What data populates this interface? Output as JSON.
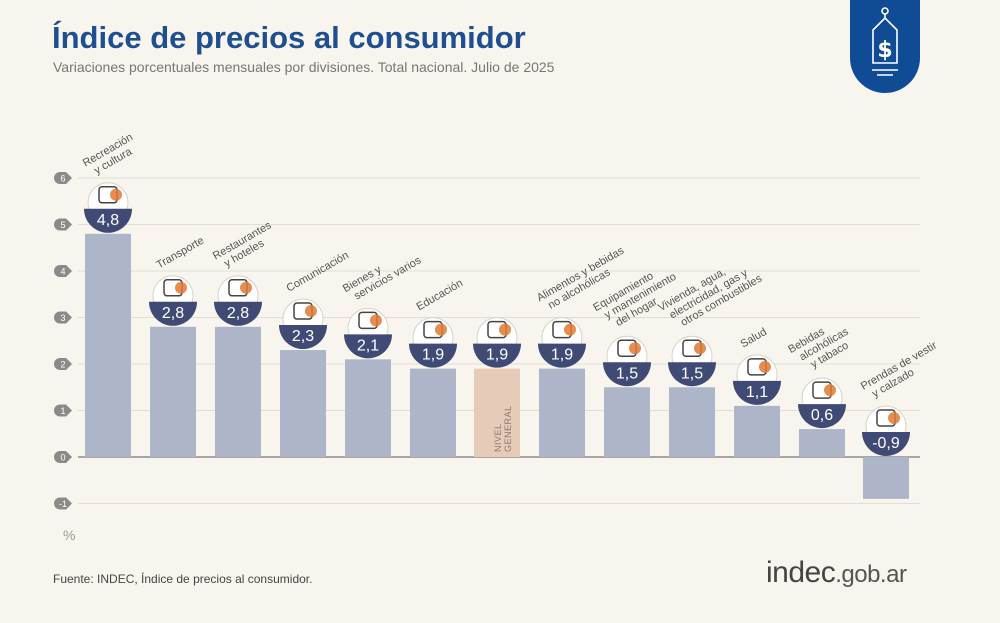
{
  "header": {
    "title": "Índice de precios al consumidor",
    "subtitle": "Variaciones porcentuales mensuales por divisiones. Total nacional. Julio de 2025"
  },
  "footer": {
    "source": "Fuente: INDEC, Índice de precios al consumidor.",
    "logo_main": "indec",
    "logo_domain": ".gob.ar"
  },
  "badge": {
    "icon": "price-tag-dollar-icon"
  },
  "colors": {
    "title": "#1d4f91",
    "bar": "#adb6c8",
    "highlight_bar": "#e6cbb8",
    "bubble": "#3f4b74",
    "accent": "#e07a33"
  },
  "chart_data": {
    "type": "bar",
    "title": "Índice de precios al consumidor",
    "ylabel": "%",
    "ylim": [
      -1,
      6
    ],
    "yticks": [
      6,
      5,
      4,
      3,
      2,
      1,
      0,
      -1
    ],
    "grid": true,
    "categories": [
      {
        "label": [
          "Recreación",
          "y cultura"
        ],
        "value": 4.8,
        "display": "4,8",
        "icon": "umbrella-sun-icon"
      },
      {
        "label": [
          "Transporte"
        ],
        "value": 2.8,
        "display": "2,8",
        "icon": "car-sube-icon"
      },
      {
        "label": [
          "Restaurantes",
          "y hoteles"
        ],
        "value": 2.8,
        "display": "2,8",
        "icon": "plate-cutlery-icon"
      },
      {
        "label": [
          "Comunicación"
        ],
        "value": 2.3,
        "display": "2,3",
        "icon": "phone-icon"
      },
      {
        "label": [
          "Bienes y",
          "servicios varios"
        ],
        "value": 2.1,
        "display": "2,1",
        "icon": "comb-scissors-icon"
      },
      {
        "label": [
          "Educación"
        ],
        "value": 1.9,
        "display": "1,9",
        "icon": "notebook-icon"
      },
      {
        "label": [],
        "value": 1.9,
        "display": "1,9",
        "icon": "basket-icon",
        "highlight": true,
        "bar_text": "NIVEL GENERAL"
      },
      {
        "label": [
          "Alimentos y bebidas",
          "no alcohólicas"
        ],
        "value": 1.9,
        "display": "1,9",
        "icon": "food-icon"
      },
      {
        "label": [
          "Equipamiento",
          "y mantenimiento",
          "del hogar"
        ],
        "value": 1.5,
        "display": "1,5",
        "icon": "appliance-icon"
      },
      {
        "label": [
          "Vivienda, agua,",
          "electricidad, gas y",
          "otros combustibles"
        ],
        "value": 1.5,
        "display": "1,5",
        "icon": "lightbulb-icon"
      },
      {
        "label": [
          "Salud"
        ],
        "value": 1.1,
        "display": "1,1",
        "icon": "medical-cross-icon"
      },
      {
        "label": [
          "Bebidas",
          "alcohólicas",
          "y tabaco"
        ],
        "value": 0.6,
        "display": "0,6",
        "icon": "bottle-glass-icon"
      },
      {
        "label": [
          "Prendas de vestir",
          "y calzado"
        ],
        "value": -0.9,
        "display": "-0,9",
        "icon": "shirt-sandal-icon"
      }
    ]
  }
}
